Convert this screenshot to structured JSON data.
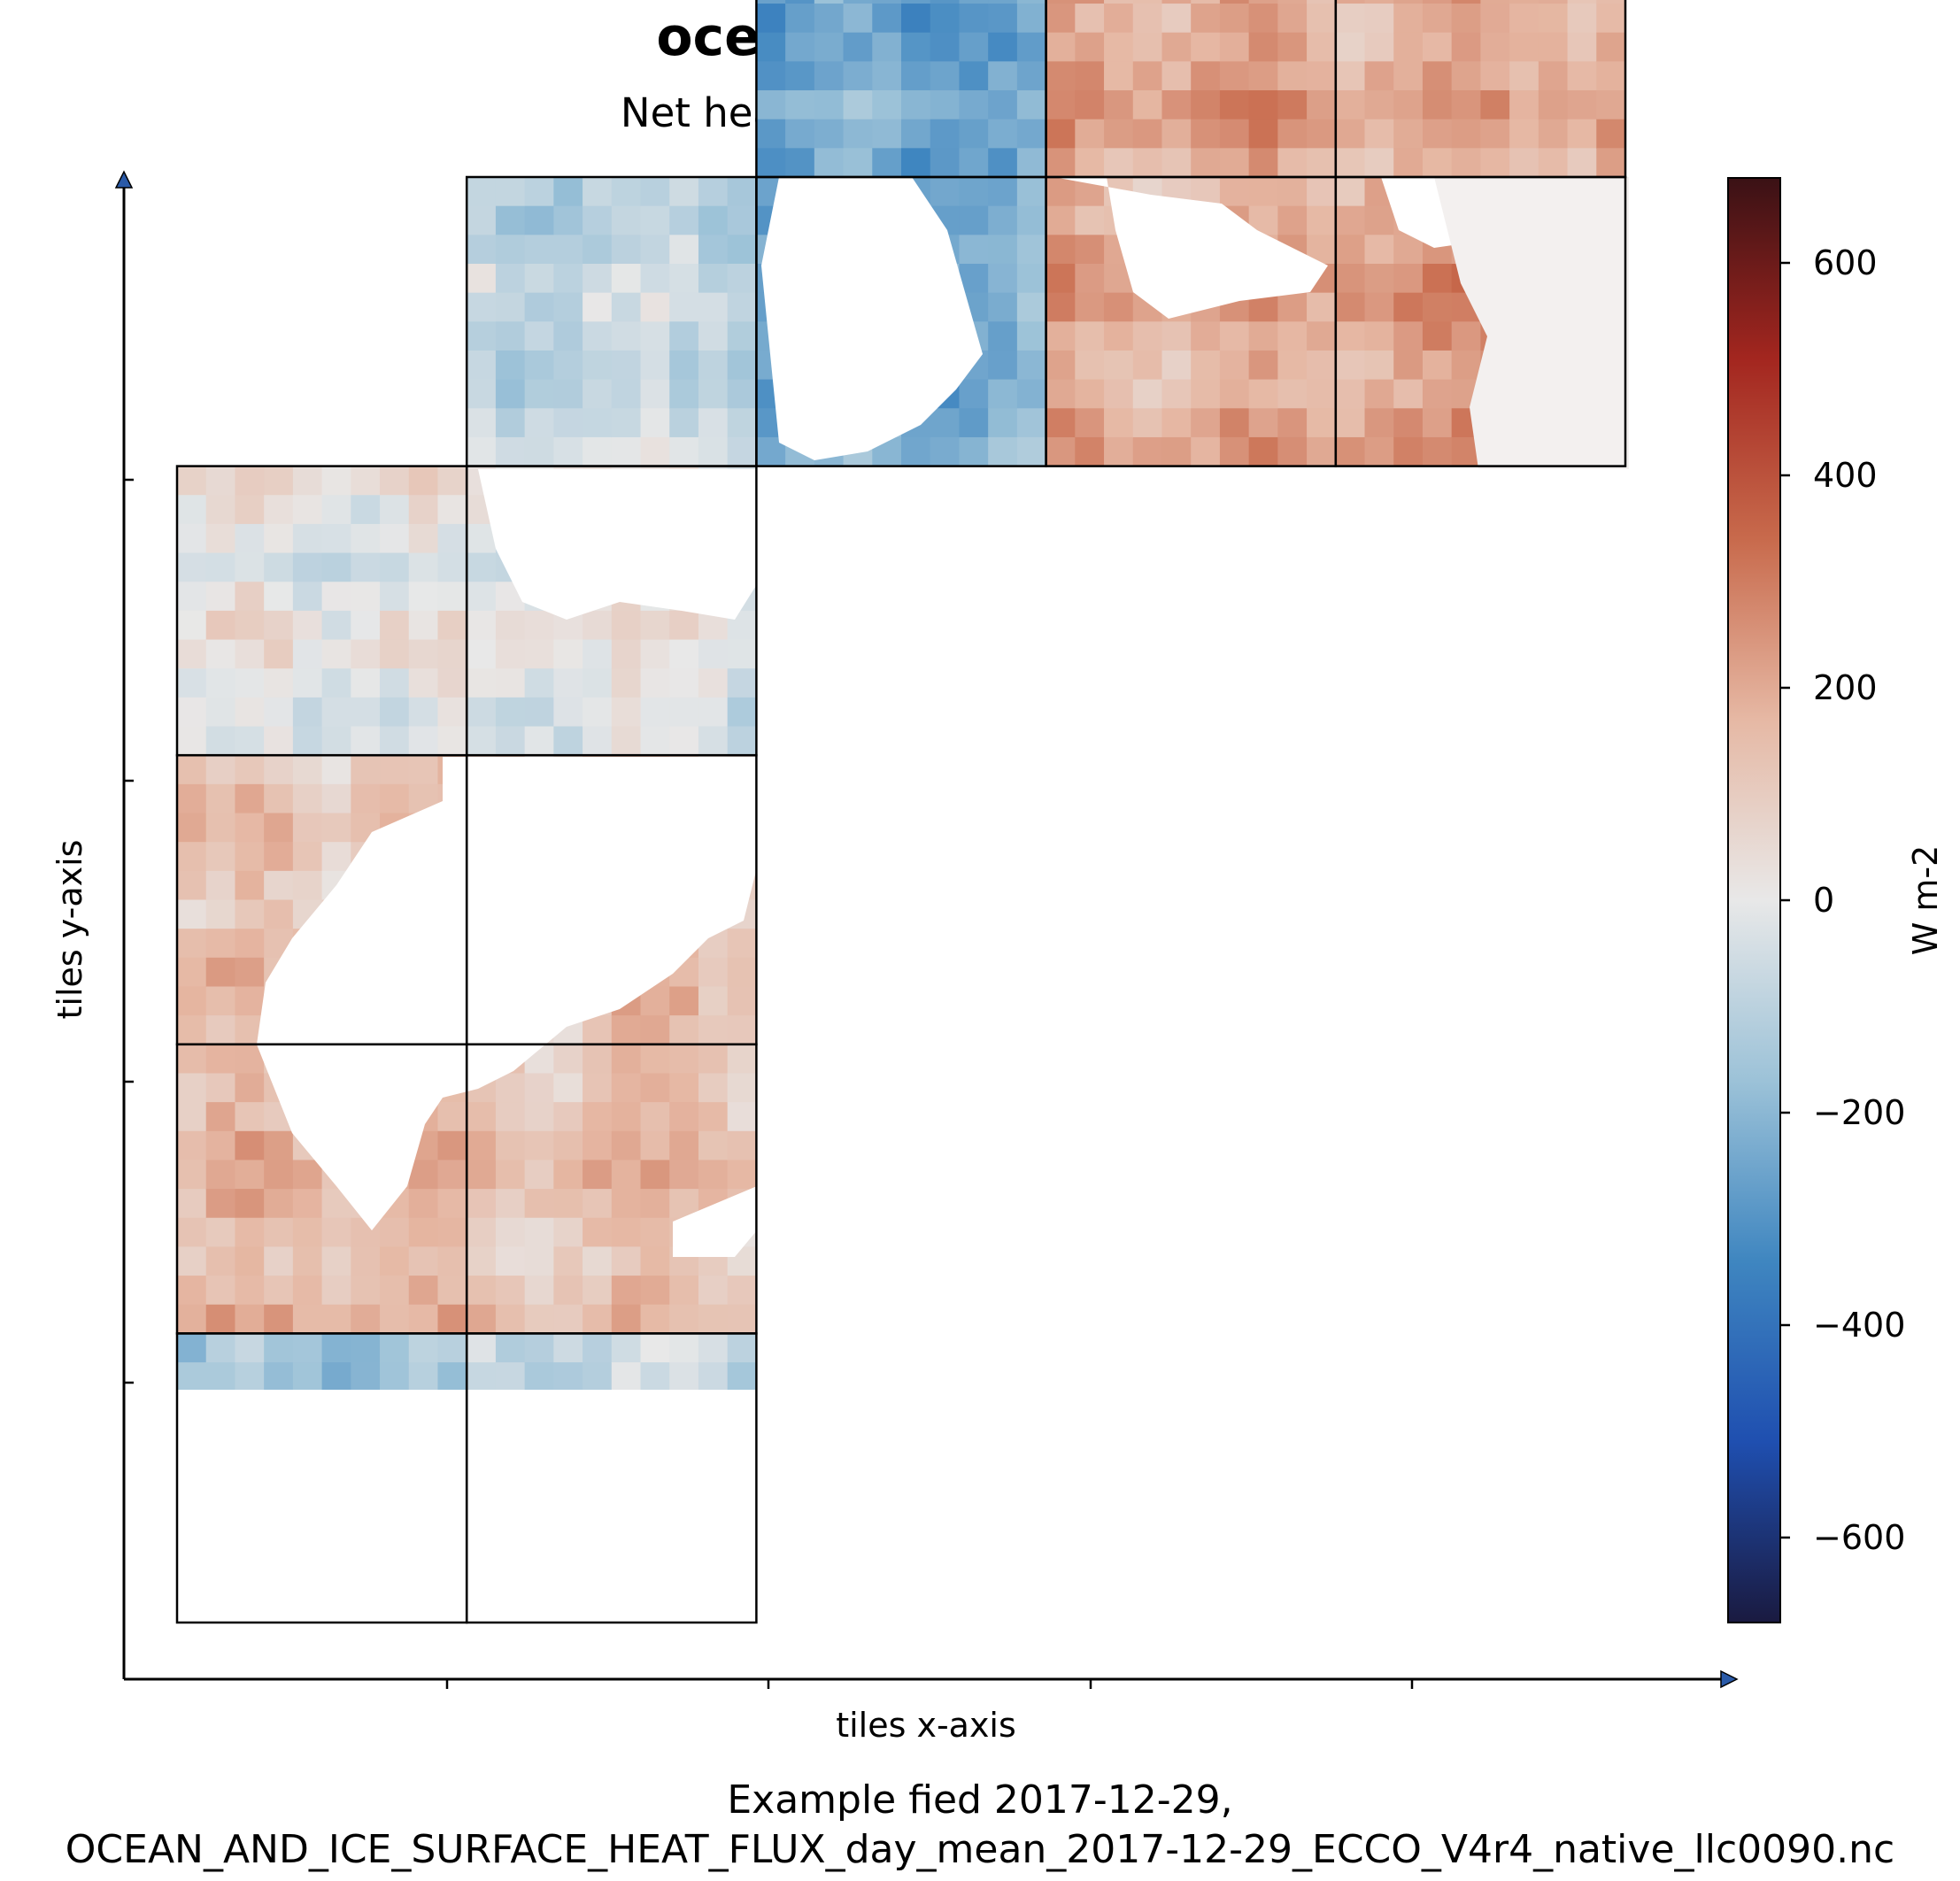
{
  "chart_data": {
    "type": "heatmap",
    "title": "oceQnet (Daily Mean)",
    "subtitle": "Net heat flux into the ocean surface",
    "xlabel": "tiles x-axis",
    "ylabel": "tiles y-axis",
    "caption": [
      "Example fied 2017-12-29,",
      "OCEAN_AND_ICE_SURFACE_HEAT_FLUX_day_mean_2017-12-29_ECCO_V4r4_native_llc0090.nc"
    ],
    "colorbar": {
      "label": "W m-2",
      "range": [
        -680,
        680
      ],
      "ticks": [
        600,
        400,
        200,
        0,
        -200,
        -400,
        -600
      ],
      "tick_labels": [
        "600",
        "400",
        "200",
        "0",
        "−200",
        "−400",
        "−600"
      ],
      "colormap": [
        "#1a1a40",
        "#1f4fb0",
        "#3f86c0",
        "#9cc2d8",
        "#e8e8e8",
        "#e6b8a4",
        "#c86a4c",
        "#a3261f",
        "#3a1115"
      ]
    },
    "grid": {
      "cols": 5,
      "rows": 5
    },
    "tiles": [
      {
        "col": 0,
        "row": 0,
        "mean": -200
      },
      {
        "col": 0,
        "row": 1,
        "mean": 150
      },
      {
        "col": 0,
        "row": 2,
        "mean": 120
      },
      {
        "col": 0,
        "row": 3,
        "mean": 0
      },
      {
        "col": 1,
        "row": 0,
        "mean": -100
      },
      {
        "col": 1,
        "row": 1,
        "mean": 140
      },
      {
        "col": 1,
        "row": 2,
        "mean": 120
      },
      {
        "col": 1,
        "row": 3,
        "mean": 0
      },
      {
        "col": 1,
        "row": 4,
        "mean": -80
      },
      {
        "col": 2,
        "row": 4,
        "mean": -220
      },
      {
        "col": 2,
        "row": 5,
        "mean": -250
      },
      {
        "col": 3,
        "row": 4,
        "mean": 190
      },
      {
        "col": 3,
        "row": 5,
        "mean": 210
      },
      {
        "col": 4,
        "row": 4,
        "mean": 230
      },
      {
        "col": 4,
        "row": 5,
        "mean": 200
      }
    ]
  }
}
